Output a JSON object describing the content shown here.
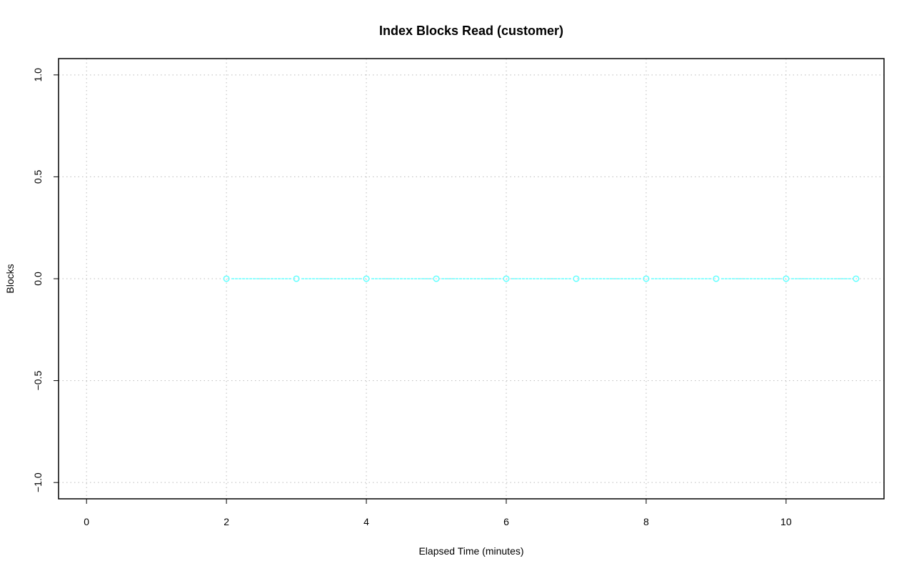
{
  "chart_data": {
    "type": "line",
    "title": "Index Blocks Read (customer)",
    "xlabel": "Elapsed Time (minutes)",
    "ylabel": "Blocks",
    "xlim": [
      -0.4,
      11.4
    ],
    "ylim": [
      -1.08,
      1.08
    ],
    "xticks": [
      0,
      2,
      4,
      6,
      8,
      10
    ],
    "yticks": [
      -1.0,
      -0.5,
      0.0,
      0.5,
      1.0
    ],
    "xtick_labels": [
      "0",
      "2",
      "4",
      "6",
      "8",
      "10"
    ],
    "ytick_labels": [
      "−1.0",
      "−0.5",
      "0.0",
      "0.5",
      "1.0"
    ],
    "grid": true,
    "series": [
      {
        "color": "#66ffff",
        "marker": "open-circle",
        "line_style": "dashed",
        "x": [
          2,
          3,
          4,
          5,
          6,
          7,
          8,
          9,
          10,
          11
        ],
        "y": [
          0,
          0,
          0,
          0,
          0,
          0,
          0,
          0,
          0,
          0
        ]
      }
    ]
  }
}
